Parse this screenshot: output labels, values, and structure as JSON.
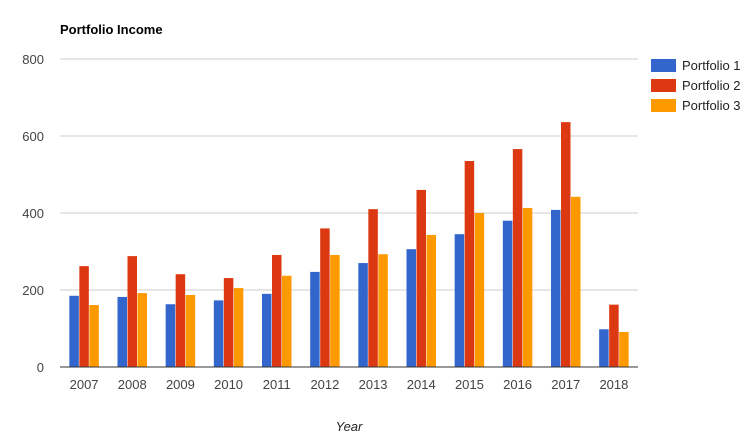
{
  "chart_data": {
    "type": "bar",
    "title": "Portfolio Income",
    "xlabel": "Year",
    "ylabel": "",
    "ylim": [
      0,
      800
    ],
    "yticks": [
      0,
      200,
      400,
      600,
      800
    ],
    "grid": true,
    "legend_position": "right",
    "categories": [
      "2007",
      "2008",
      "2009",
      "2010",
      "2011",
      "2012",
      "2013",
      "2014",
      "2015",
      "2016",
      "2017",
      "2018"
    ],
    "series": [
      {
        "name": "Portfolio 1",
        "color": "#3366cc",
        "values": [
          185,
          182,
          163,
          173,
          190,
          247,
          270,
          306,
          345,
          380,
          408,
          98
        ]
      },
      {
        "name": "Portfolio 2",
        "color": "#dc3912",
        "values": [
          262,
          288,
          241,
          231,
          291,
          360,
          410,
          460,
          535,
          566,
          636,
          162
        ]
      },
      {
        "name": "Portfolio 3",
        "color": "#ff9900",
        "values": [
          161,
          192,
          187,
          205,
          237,
          291,
          293,
          343,
          400,
          413,
          442,
          91
        ]
      }
    ]
  }
}
